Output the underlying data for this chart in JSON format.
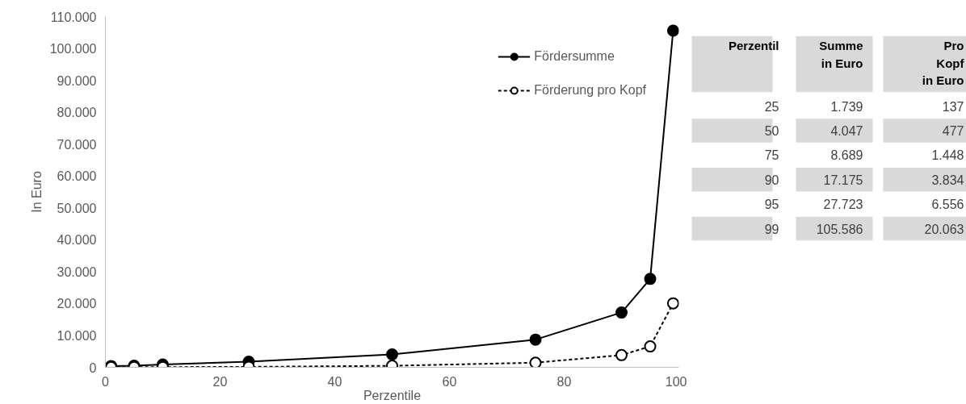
{
  "chart_data": {
    "type": "line",
    "xlabel": "Perzentile",
    "ylabel": "In Euro",
    "x": [
      1,
      5,
      10,
      25,
      50,
      75,
      90,
      95,
      99
    ],
    "series": [
      {
        "name": "Fördersumme",
        "color": "#000000",
        "line_style": "solid",
        "values": [
          400,
          500,
          900,
          1739,
          4047,
          8689,
          17175,
          27723,
          105586
        ]
      },
      {
        "name": "Förderung pro Kopf",
        "color": "#000000",
        "line_style": "dashed",
        "values": [
          50,
          60,
          80,
          137,
          477,
          1448,
          3834,
          6556,
          20063
        ]
      }
    ],
    "xlim": [
      0,
      100
    ],
    "xticks": [
      0,
      20,
      40,
      60,
      80,
      100
    ],
    "ylim": [
      0,
      110000
    ],
    "yticks": [
      {
        "value": 0,
        "label": "0"
      },
      {
        "value": 10000,
        "label": "10.000"
      },
      {
        "value": 20000,
        "label": "20.000"
      },
      {
        "value": 30000,
        "label": "30.000"
      },
      {
        "value": 40000,
        "label": "40.000"
      },
      {
        "value": 50000,
        "label": "50.000"
      },
      {
        "value": 60000,
        "label": "60.000"
      },
      {
        "value": 70000,
        "label": "70.000"
      },
      {
        "value": 80000,
        "label": "80.000"
      },
      {
        "value": 90000,
        "label": "90.000"
      },
      {
        "value": 100000,
        "label": "100.000"
      },
      {
        "value": 110000,
        "label": "110.000"
      }
    ],
    "marker": "circle",
    "grid": false,
    "legend": "top right",
    "annotations": [
      "Perzentil",
      "Summe\nin Euro",
      "Pro\nKopf\nin Euro",
      "25",
      "1.739",
      "137",
      "50",
      "4.047",
      "477",
      "75",
      "8.689",
      "1.448",
      "90",
      "17.175",
      "3.834",
      "95",
      "27.723",
      "6.556",
      "99",
      "105.586",
      "20.063"
    ]
  }
}
